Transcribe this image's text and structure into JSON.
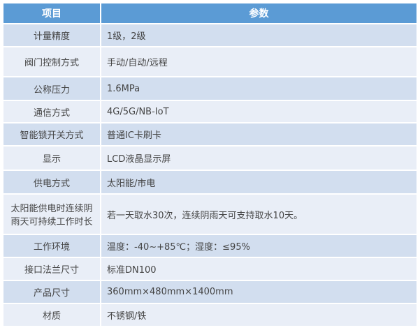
{
  "header": {
    "col1": "项目",
    "col2": "参数"
  },
  "rows": [
    {
      "item": "计量精度",
      "value": "1级，2级"
    },
    {
      "item": "阀门控制方式",
      "value": "手动/自动/远程"
    },
    {
      "item": "公称压力",
      "value": "1.6MPa"
    },
    {
      "item": "通信方式",
      "value": "4G/5G/NB-IoT"
    },
    {
      "item": "智能锁开关方式",
      "value": "普通IC卡刷卡"
    },
    {
      "item": "显示",
      "value": "LCD液晶显示屏"
    },
    {
      "item": "供电方式",
      "value": "太阳能/市电"
    },
    {
      "item": "太阳能供电时连续阴雨天可持续工作时长",
      "value": "若一天取水30次，连续阴雨天可支持取水10天。"
    },
    {
      "item": "工作环境",
      "value": "温度：-40~+85℃；湿度：≤95%"
    },
    {
      "item": "接口法兰尺寸",
      "value": "标准DN100"
    },
    {
      "item": "产品尺寸",
      "value": "360mm×480mm×1400mm"
    },
    {
      "item": "材质",
      "value": "不锈钢/铁"
    }
  ],
  "colors": {
    "header": "#5b9bd5",
    "row_odd": "#d2deef",
    "row_even": "#e9eef7"
  }
}
